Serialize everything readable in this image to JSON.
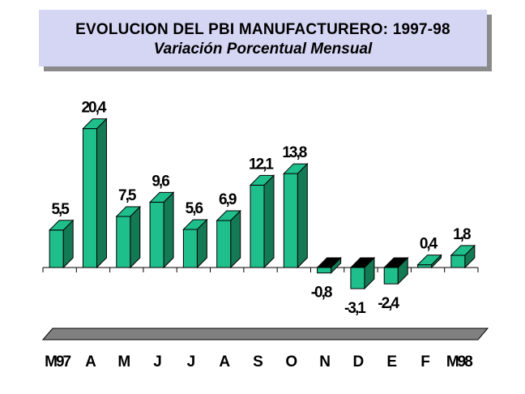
{
  "title": "EVOLUCION DEL PBI MANUFACTURERO: 1997-98",
  "subtitle": "Variación Porcentual Mensual",
  "colors": {
    "bar_front": "#1fbf8b",
    "bar_side": "#137a55",
    "bar_top": "#128a61",
    "floor": "#808080",
    "title_bg": "#d4d6f4"
  },
  "chart_data": {
    "type": "bar",
    "title": "EVOLUCION DEL PBI MANUFACTURERO: 1997-98",
    "subtitle": "Variación Porcentual Mensual",
    "categories": [
      "M97",
      "A",
      "M",
      "J",
      "J",
      "A",
      "S",
      "O",
      "N",
      "D",
      "E",
      "F",
      "M98"
    ],
    "values": [
      5.5,
      20.4,
      7.5,
      9.6,
      5.6,
      6.9,
      12.1,
      13.8,
      -0.8,
      -3.1,
      -2.4,
      0.4,
      1.8
    ],
    "value_labels": [
      "5,5",
      "20,4",
      "7,5",
      "9,6",
      "5,6",
      "6,9",
      "12,1",
      "13,8",
      "-0,8",
      "-3,1",
      "-2,4",
      "0,4",
      "1,8"
    ],
    "xlabel": "",
    "ylabel": "",
    "grid": false,
    "legend": "none",
    "three_d": true
  }
}
